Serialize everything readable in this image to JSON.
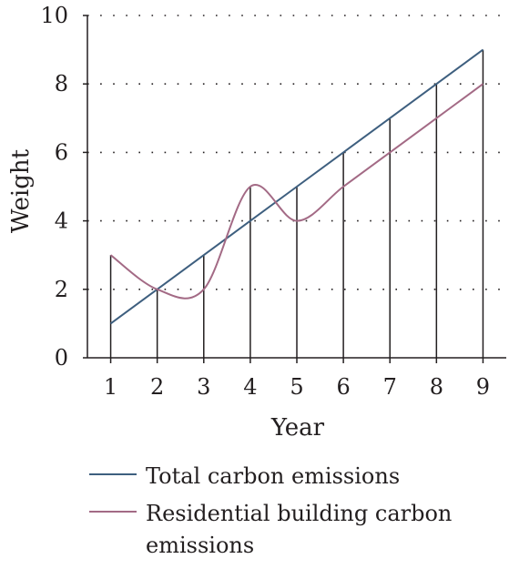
{
  "chart_data": {
    "type": "line",
    "xlabel": "Year",
    "ylabel": "Weight",
    "x": [
      1,
      2,
      3,
      4,
      5,
      6,
      7,
      8,
      9
    ],
    "xlim": [
      0.5,
      9.5
    ],
    "ylim": [
      0,
      10
    ],
    "y_ticks": [
      0,
      2,
      4,
      6,
      8,
      10
    ],
    "grid": "horizontal dotted",
    "legend_position": "bottom",
    "series": [
      {
        "name": "Total carbon emissions",
        "color": "#3e5f7f",
        "values": [
          1,
          2,
          3,
          4,
          5,
          6,
          7,
          8,
          9
        ],
        "style": "straight"
      },
      {
        "name": "Residential building carbon emissions",
        "color": "#a36a85",
        "values": [
          3,
          2,
          2,
          5,
          4,
          5,
          6,
          7,
          8
        ],
        "style": "smooth"
      }
    ],
    "drop_lines": [
      1,
      2,
      3,
      4,
      5,
      6,
      7,
      8,
      9
    ]
  }
}
